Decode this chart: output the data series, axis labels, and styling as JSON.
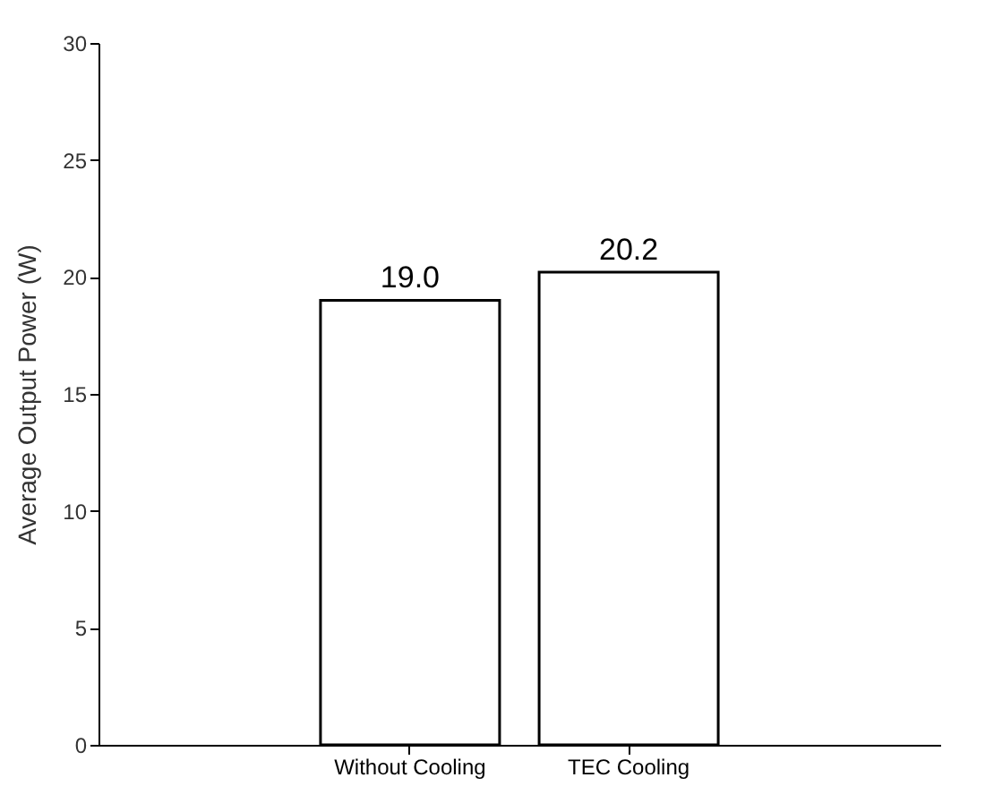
{
  "chart_data": {
    "type": "bar",
    "ylabel": "Average Output Power (W)",
    "categories": [
      "Without Cooling",
      "TEC Cooling"
    ],
    "values": [
      19.0,
      20.2
    ],
    "value_labels": [
      "19.0",
      "20.2"
    ],
    "color": "#ffffff",
    "ylim": [
      0,
      30
    ],
    "yticks": [
      0,
      5,
      10,
      15,
      20,
      25,
      30
    ],
    "grid": false
  }
}
